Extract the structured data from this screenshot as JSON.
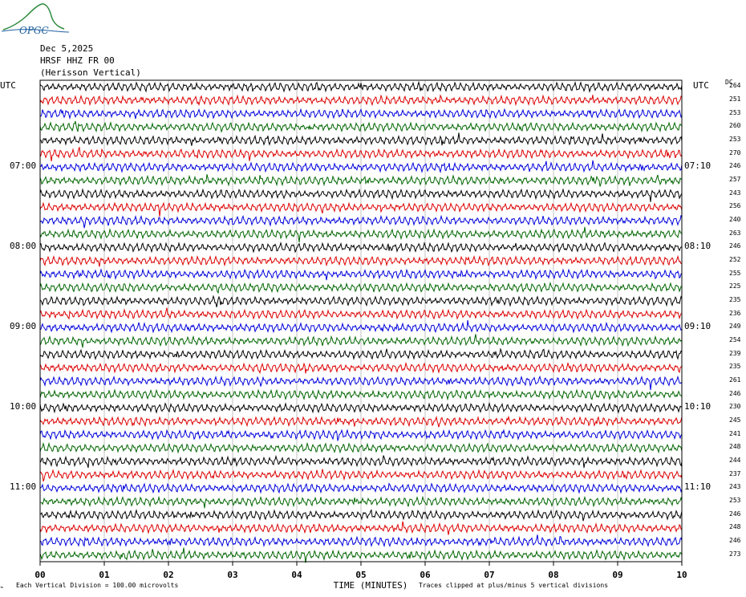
{
  "logo": {
    "text": "OPGC"
  },
  "header": {
    "date": "Dec 5,2025",
    "station": "HRSF HHZ FR 00",
    "description": "(Herisson Vertical)"
  },
  "left_axis_title": "UTC",
  "right_axis_title": "UTC",
  "dc_header": "DC",
  "footer": {
    "scale_note": "Each Vertical Division =  100.00 microvolts",
    "clip_note": "Traces clipped at plus/minus 5 vertical divisions"
  },
  "chart_data": {
    "type": "line",
    "title": "",
    "xlabel": "TIME (MINUTES)",
    "ylabel": "UTC",
    "xlim": [
      0,
      10
    ],
    "x_ticks": [
      "00",
      "01",
      "02",
      "03",
      "04",
      "05",
      "06",
      "07",
      "08",
      "09",
      "10"
    ],
    "left_hour_labels": [
      {
        "row": 6,
        "label": "07:00"
      },
      {
        "row": 12,
        "label": "08:00"
      },
      {
        "row": 18,
        "label": "09:00"
      },
      {
        "row": 24,
        "label": "10:00"
      },
      {
        "row": 30,
        "label": "11:00"
      }
    ],
    "right_hour_labels": [
      {
        "row": 6,
        "label": "07:10"
      },
      {
        "row": 12,
        "label": "08:10"
      },
      {
        "row": 18,
        "label": "09:10"
      },
      {
        "row": 24,
        "label": "10:10"
      },
      {
        "row": 30,
        "label": "11:10"
      }
    ],
    "trace_colors": [
      "#000000",
      "#dd0000",
      "#0000dd",
      "#006600"
    ],
    "grid": true,
    "clip_divisions": 5,
    "microvolts_per_division": 100.0,
    "dc_offsets": [
      264,
      251,
      253,
      260,
      253,
      270,
      246,
      257,
      243,
      256,
      240,
      263,
      246,
      252,
      255,
      225,
      235,
      236,
      249,
      254,
      239,
      235,
      261,
      246,
      230,
      245,
      241,
      248,
      244,
      237,
      243,
      253,
      246,
      248,
      246,
      273
    ]
  }
}
